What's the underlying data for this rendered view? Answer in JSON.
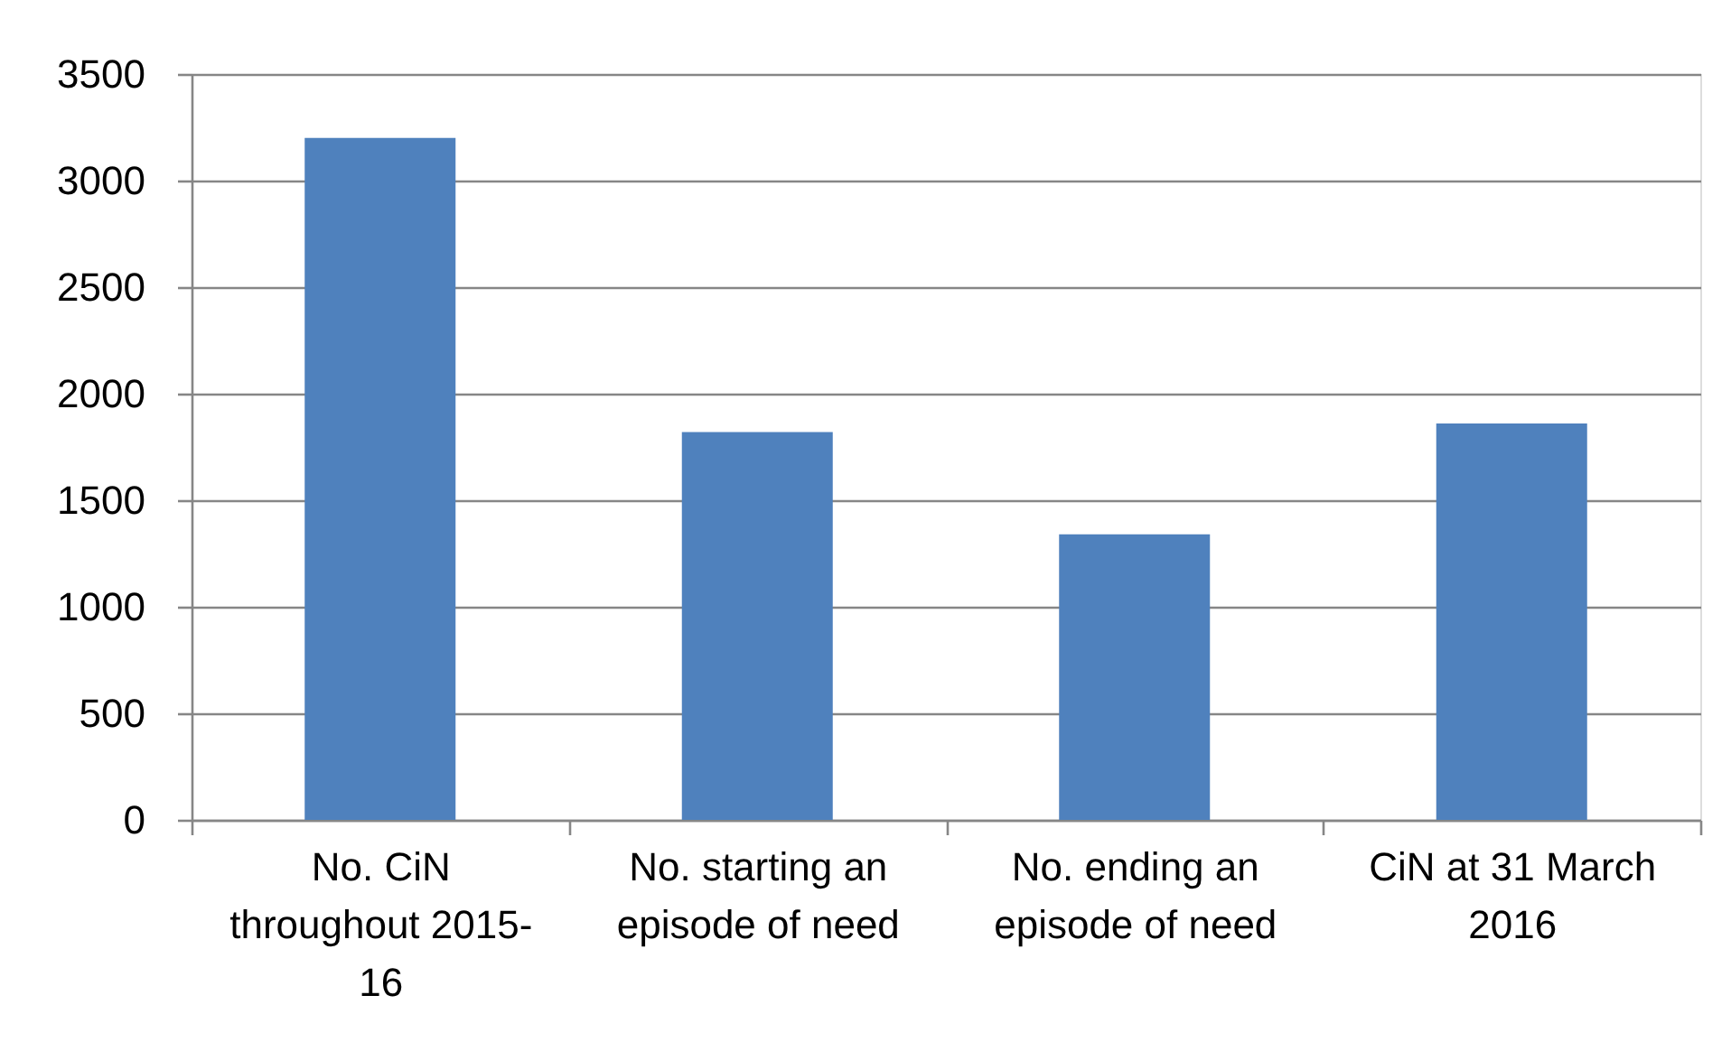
{
  "chart_data": {
    "type": "bar",
    "categories": [
      "No. CiN throughout 2015-16",
      "No. starting an episode of need",
      "No. ending an episode of need",
      "CiN at 31 March 2016"
    ],
    "values": [
      3200,
      1820,
      1340,
      1860
    ],
    "color": "#4f81bd",
    "ylim": [
      0,
      3500
    ],
    "yticks": [
      0,
      500,
      1000,
      1500,
      2000,
      2500,
      3000,
      3500
    ],
    "grid": "y"
  }
}
